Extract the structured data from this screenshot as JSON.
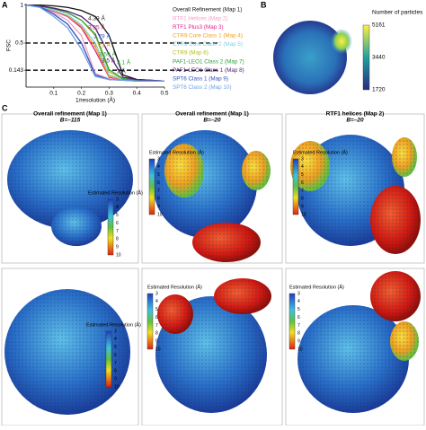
{
  "panel_labels": [
    "A",
    "B",
    "C"
  ],
  "chart_data": {
    "type": "line",
    "xlabel": "1/resolution (Å)",
    "ylabel": "FSC",
    "x": [
      0,
      0.05,
      0.1,
      0.15,
      0.2,
      0.25,
      0.3,
      0.35,
      0.4,
      0.45,
      0.5
    ],
    "xlim": [
      0,
      0.5
    ],
    "ylim": [
      -0.08,
      1.02
    ],
    "xticks": [
      0.1,
      0.2,
      0.3,
      0.4,
      0.5
    ],
    "yticks": [
      0.143,
      0.5,
      1
    ],
    "series": [
      {
        "name": "Overall Refinement (Map 1)",
        "color": "#111111",
        "values": [
          1,
          1,
          0.99,
          0.97,
          0.93,
          0.85,
          0.6,
          0.08,
          0.02,
          0.01,
          0
        ]
      },
      {
        "name": "RTF1 Helices (Map 2)",
        "color": "#f0a0c8",
        "values": [
          1,
          0.98,
          0.9,
          0.8,
          0.6,
          0.1,
          0.03,
          0.01,
          0,
          0,
          0
        ]
      },
      {
        "name": "RTF1 Plus3 (Map 3)",
        "color": "#e0208a",
        "values": [
          1,
          0.98,
          0.92,
          0.85,
          0.7,
          0.4,
          0.05,
          0.02,
          0,
          0,
          0
        ]
      },
      {
        "name": "CTR9 Core Class 1 (Map 4)",
        "color": "#f0a020",
        "values": [
          1,
          0.98,
          0.93,
          0.86,
          0.72,
          0.45,
          0.06,
          0.02,
          0.01,
          0,
          0
        ]
      },
      {
        "name": "CTR9 Core Class 2 (Map 5)",
        "color": "#80d0e0",
        "values": [
          1,
          0.98,
          0.93,
          0.87,
          0.74,
          0.5,
          0.08,
          0.02,
          0.01,
          0,
          0
        ]
      },
      {
        "name": "CTR9 (Map 6)",
        "color": "#b0c020",
        "values": [
          1,
          0.99,
          0.95,
          0.9,
          0.8,
          0.6,
          0.12,
          0.03,
          0.01,
          0,
          0
        ]
      },
      {
        "name": "PAF1-LEO1 Class 2 (Map 7)",
        "color": "#30a040",
        "values": [
          1,
          0.99,
          0.95,
          0.9,
          0.8,
          0.62,
          0.15,
          0.03,
          0.01,
          0,
          0
        ]
      },
      {
        "name": "PAF1-LEO1 Class 1 (Map 8)",
        "color": "#502070",
        "values": [
          1,
          0.99,
          0.96,
          0.92,
          0.85,
          0.7,
          0.35,
          0.05,
          0.02,
          0.01,
          0
        ]
      },
      {
        "name": "SPT6 Class 1 (Map 9)",
        "color": "#3050c0",
        "values": [
          1,
          0.98,
          0.88,
          0.75,
          0.5,
          0.08,
          0.02,
          0.01,
          0,
          0,
          0
        ]
      },
      {
        "name": "SPT6 Class 2 (Map 10)",
        "color": "#70a0e0",
        "values": [
          1,
          0.97,
          0.85,
          0.7,
          0.42,
          0.06,
          0.02,
          0.01,
          0,
          0,
          0
        ]
      }
    ],
    "annotations": [
      "4.39 Å",
      "3.85 Å",
      "3.79 Å",
      "3.73 Å",
      "3.59 Å",
      "3.5 Å",
      "3.1 Å",
      "3 Å"
    ]
  },
  "particle_map": {
    "title": "Number of particles",
    "ticks": [
      5161,
      3440,
      1720
    ]
  },
  "resolution_colorbar": {
    "title": "Estimated Resolution (Å)",
    "ticks": [
      3,
      4,
      5,
      6,
      7,
      8,
      9,
      10
    ]
  },
  "maps": [
    {
      "title": "Overall refinement (Map 1)",
      "bfactor": "B=–115"
    },
    {
      "title": "Overall refinement (Map 1)",
      "bfactor": "B=–20"
    },
    {
      "title": "RTF1 helices (Map 2)",
      "bfactor": "B=–20"
    }
  ]
}
